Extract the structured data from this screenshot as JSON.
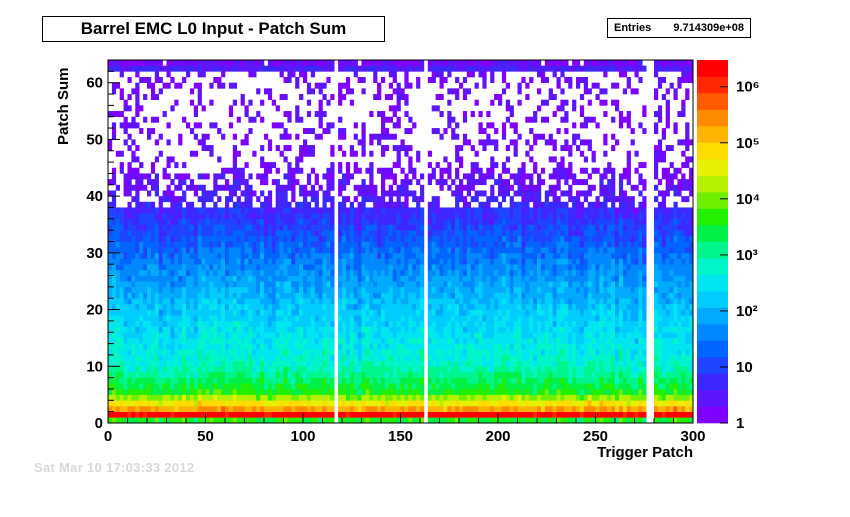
{
  "chart_data": {
    "type": "heatmap",
    "title": "Barrel EMC L0 Input - Patch Sum",
    "xlabel": "Trigger Patch",
    "ylabel": "Patch Sum",
    "xlim": [
      0,
      300
    ],
    "ylim": [
      0,
      64
    ],
    "x_ticks": [
      0,
      50,
      100,
      150,
      200,
      250,
      300
    ],
    "y_ticks": [
      0,
      10,
      20,
      30,
      40,
      50,
      60
    ],
    "z_scale": "log",
    "z_range": [
      1,
      3000000
    ],
    "z_ticks": [
      {
        "value": 1,
        "label": "1"
      },
      {
        "value": 10,
        "label": "10"
      },
      {
        "value": 100,
        "label": "10²"
      },
      {
        "value": 1000,
        "label": "10³"
      },
      {
        "value": 10000,
        "label": "10⁴"
      },
      {
        "value": 100000,
        "label": "10⁵"
      },
      {
        "value": 1000000,
        "label": "10⁶"
      }
    ],
    "stats": {
      "label": "Entries",
      "value": "9.714309e+08"
    },
    "empty_columns": [
      117,
      162,
      277,
      278
    ],
    "density_profile": [
      {
        "patch_sum": 0,
        "counts": 4000
      },
      {
        "patch_sum": 1,
        "counts": 3000000
      },
      {
        "patch_sum": 2,
        "counts": 200000
      },
      {
        "patch_sum": 5,
        "counts": 4000
      },
      {
        "patch_sum": 10,
        "counts": 600
      },
      {
        "patch_sum": 20,
        "counts": 150
      },
      {
        "patch_sum": 30,
        "counts": 25
      },
      {
        "patch_sum": 40,
        "counts": 3
      },
      {
        "patch_sum": 50,
        "counts": 1
      },
      {
        "patch_sum": 63,
        "counts": 2
      }
    ]
  },
  "footer": {
    "timestamp": "Sat Mar 10 17:03:33 2012"
  }
}
